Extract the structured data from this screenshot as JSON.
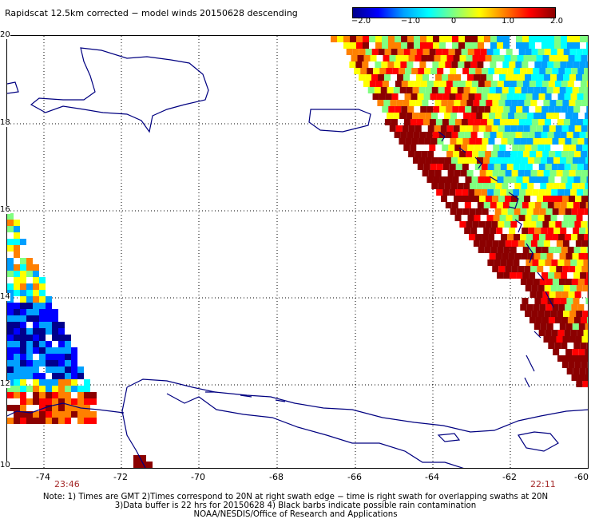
{
  "title": "Rapidscat 12.5km corrected − model winds 20150628 descending",
  "colorbar": {
    "labels": [
      "−2.0",
      "−1.0",
      "0",
      "1.0",
      "2.0"
    ],
    "values": [
      -2.0,
      -1.0,
      0.0,
      1.0,
      2.0
    ],
    "colors": [
      "#00008c",
      "#0000ff",
      "#00a0ff",
      "#00ffff",
      "#80ff80",
      "#ffff00",
      "#ff8000",
      "#ff0000",
      "#8b0000"
    ]
  },
  "axes": {
    "x_labels": [
      "-74",
      "-72",
      "-70",
      "-68",
      "-66",
      "-64",
      "-62",
      "-60"
    ],
    "y_labels": [
      "20",
      "18",
      "16",
      "14",
      "12",
      "10"
    ]
  },
  "swath_times": {
    "left": "23:46",
    "right": "22:11"
  },
  "colors": {
    "land_outline": "#000080",
    "grid": "#000000",
    "frame": "#000000",
    "time_text": "#a52a2a"
  },
  "notes": [
    "Note: 1) Times are GMT 2)Times correspond to 20N at right swath edge − time is right swath for overlapping swaths at 20N",
    "3)Data buffer is 22 hrs for 20150628 4) Black barbs indicate possible rain contamination",
    "NOAA/NESDIS/Office of Research and Applications"
  ]
}
